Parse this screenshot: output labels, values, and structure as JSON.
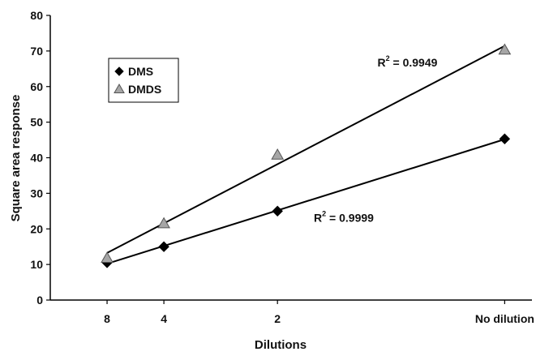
{
  "chart_data": {
    "type": "scatter",
    "title": "",
    "xlabel": "Dilutions",
    "ylabel": "Square area response",
    "ylim": [
      0,
      80
    ],
    "y_ticks": [
      0,
      10,
      20,
      30,
      40,
      50,
      60,
      70,
      80
    ],
    "x_tick_labels": [
      {
        "label": "8",
        "x": 0.125
      },
      {
        "label": "4",
        "x": 0.25
      },
      {
        "label": "2",
        "x": 0.5
      },
      {
        "label": "No dilution",
        "x": 1.0
      }
    ],
    "xlim": [
      0.0,
      1.06
    ],
    "x": [
      0.125,
      0.25,
      0.5,
      1.0
    ],
    "series": [
      {
        "name": "DMS",
        "marker": "diamond",
        "color": "#000000",
        "values": [
          10.5,
          15.0,
          25.0,
          45.3
        ]
      },
      {
        "name": "DMDS",
        "marker": "triangle",
        "color": "#a6a6a6",
        "values": [
          11.8,
          21.5,
          40.8,
          70.3
        ]
      }
    ],
    "trendlines": [
      {
        "series": "DMS",
        "annotation_base": "R",
        "annotation_exp": "2",
        "annotation_value": " = 0.9999"
      },
      {
        "series": "DMDS",
        "annotation_base": "R",
        "annotation_exp": "2",
        "annotation_value": " = 0.9949"
      }
    ],
    "grid": false,
    "legend_position": "top-left"
  }
}
